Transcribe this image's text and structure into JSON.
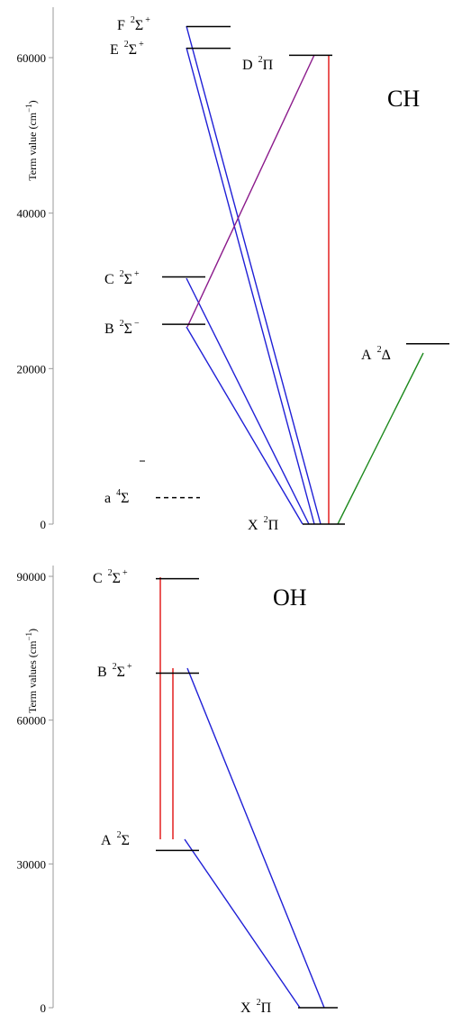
{
  "colors": {
    "axis": "#9a9a9a",
    "level": "#000000",
    "blue": "#1f1fd6",
    "red": "#e01010",
    "purple": "#8b1a8b",
    "green": "#1f8a1f"
  },
  "diagrams": [
    {
      "id": "ch",
      "molecule": "CH",
      "ylabel": "Term value (cm",
      "ylabel_exp": "−1",
      "ylabel_end": ")",
      "ylim": [
        0,
        65000
      ],
      "ticks": [
        {
          "value": 0,
          "label": "0"
        },
        {
          "value": 20000,
          "label": "20000"
        },
        {
          "value": 40000,
          "label": "40000"
        },
        {
          "value": 60000,
          "label": "60000"
        }
      ],
      "levels": [
        {
          "id": "F",
          "letter": "F",
          "mult": "2",
          "sym": "Σ",
          "sup": "+",
          "energy": 64000
        },
        {
          "id": "E",
          "letter": "E",
          "mult": "2",
          "sym": "Σ",
          "sup": "+",
          "energy": 61200
        },
        {
          "id": "D",
          "letter": "D",
          "mult": "2",
          "sym": "Π",
          "sup": "",
          "energy": 60300
        },
        {
          "id": "C",
          "letter": "C",
          "mult": "2",
          "sym": "Σ",
          "sup": "+",
          "energy": 31800
        },
        {
          "id": "B",
          "letter": "B",
          "mult": "2",
          "sym": "Σ",
          "sup": "−",
          "energy": 25700
        },
        {
          "id": "A",
          "letter": "A",
          "mult": "2",
          "sym": "Δ",
          "sup": "",
          "energy": 23200
        },
        {
          "id": "a",
          "letter": "a",
          "mult": "4",
          "sym": "Σ",
          "sup": "",
          "energy": 3400,
          "dashed": true,
          "minus_mark": true
        },
        {
          "id": "X",
          "letter": "X",
          "mult": "2",
          "sym": "Π",
          "sup": "",
          "energy": 0
        }
      ],
      "transitions": [
        {
          "from": "F",
          "to": "X",
          "color": "blue"
        },
        {
          "from": "E",
          "to": "X",
          "color": "blue"
        },
        {
          "from": "C",
          "to": "X",
          "color": "blue"
        },
        {
          "from": "B",
          "to": "X",
          "color": "blue"
        },
        {
          "from": "D",
          "to": "B",
          "color": "purple"
        },
        {
          "from": "D",
          "to": "X",
          "color": "red"
        },
        {
          "from": "A",
          "to": "X",
          "color": "green"
        }
      ]
    },
    {
      "id": "oh",
      "molecule": "OH",
      "ylabel": "Term values (cm",
      "ylabel_exp": "−1",
      "ylabel_end": ")",
      "ylim": [
        0,
        90000
      ],
      "ticks": [
        {
          "value": 0,
          "label": "0"
        },
        {
          "value": 30000,
          "label": "30000"
        },
        {
          "value": 60000,
          "label": "60000"
        },
        {
          "value": 90000,
          "label": "90000"
        }
      ],
      "levels": [
        {
          "id": "C",
          "letter": "C",
          "mult": "2",
          "sym": "Σ",
          "sup": "+",
          "energy": 89500
        },
        {
          "id": "B",
          "letter": "B",
          "mult": "2",
          "sym": "Σ",
          "sup": "+",
          "energy": 69800
        },
        {
          "id": "A",
          "letter": "A",
          "mult": "2",
          "sym": "Σ",
          "sup": "",
          "energy": 32800
        },
        {
          "id": "X",
          "letter": "X",
          "mult": "2",
          "sym": "Π",
          "sup": "",
          "energy": 0
        }
      ],
      "transitions": [
        {
          "from": "C",
          "to": "A",
          "color": "red"
        },
        {
          "from": "B",
          "to": "A",
          "color": "red"
        },
        {
          "from": "B",
          "to": "X",
          "color": "blue"
        },
        {
          "from": "A",
          "to": "X",
          "color": "blue"
        }
      ]
    }
  ]
}
